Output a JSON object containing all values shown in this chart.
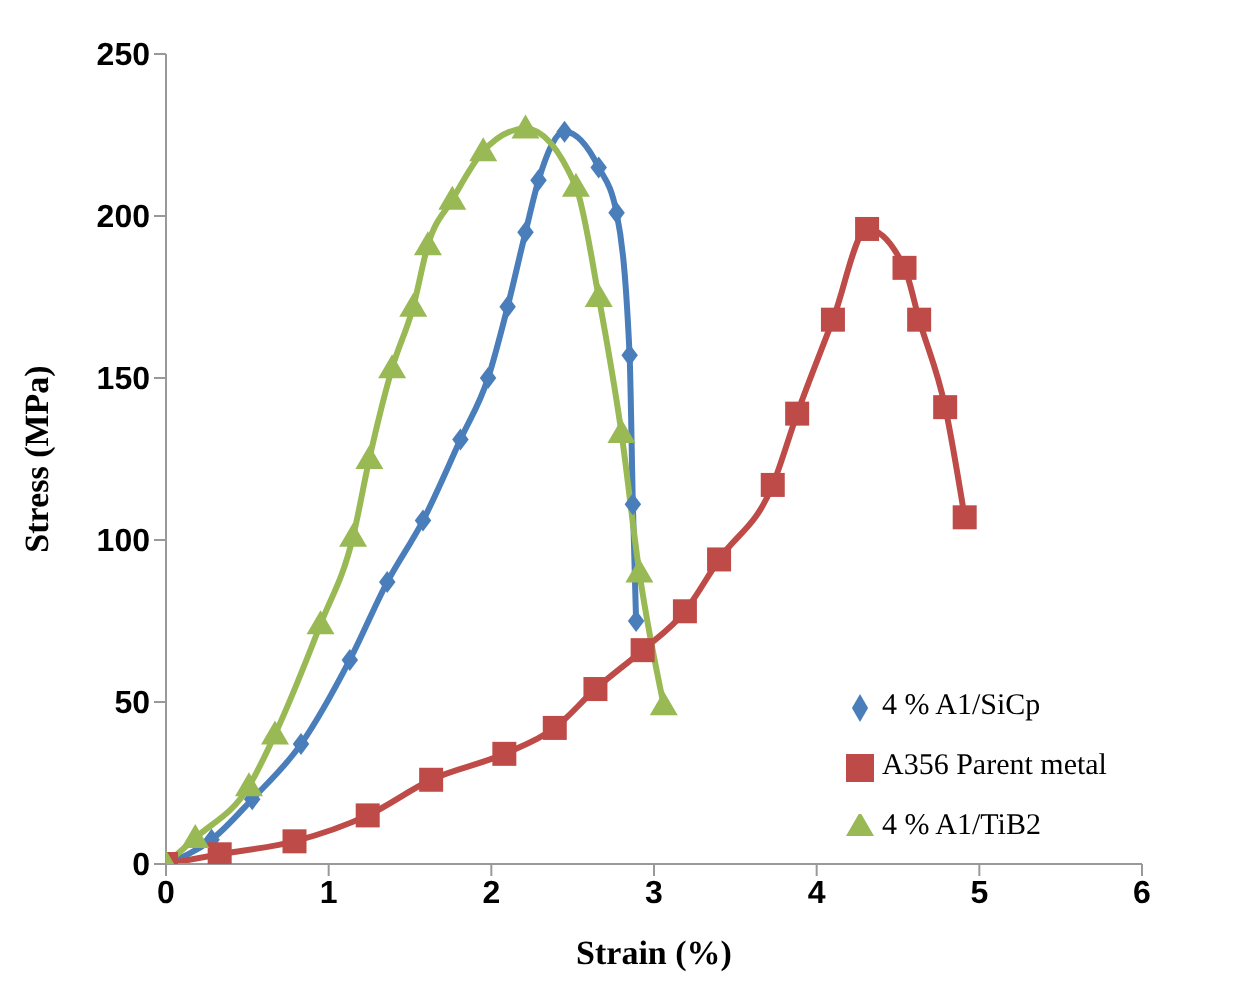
{
  "chart_data": {
    "type": "line",
    "xlabel": "Strain (%)",
    "ylabel": "Stress (MPa)",
    "xlim": [
      0,
      6
    ],
    "xticks": [
      0,
      1,
      2,
      3,
      4,
      5,
      6
    ],
    "ylim": [
      0,
      250
    ],
    "yticks": [
      0,
      50,
      100,
      150,
      200,
      250
    ],
    "grid": false,
    "legend": "right",
    "series": [
      {
        "name": "4 % A1/SiCp",
        "color": "#4a7ebb",
        "marker": "diamond",
        "x": [
          0,
          0.28,
          0.53,
          0.83,
          1.13,
          1.36,
          1.58,
          1.81,
          1.98,
          2.1,
          2.21,
          2.29,
          2.45,
          2.66,
          2.77,
          2.85,
          2.87,
          2.89
        ],
        "values": [
          0,
          7.5,
          20,
          37,
          63,
          87,
          106,
          131,
          150,
          172,
          195,
          211,
          226,
          215,
          201,
          157,
          111,
          75
        ]
      },
      {
        "name": "A356 Parent metal",
        "color": "#be4b48",
        "marker": "square",
        "x": [
          0,
          0.33,
          0.79,
          1.24,
          1.63,
          2.08,
          2.39,
          2.64,
          2.93,
          3.19,
          3.4,
          3.73,
          3.88,
          4.1,
          4.31,
          4.54,
          4.63,
          4.79,
          4.91
        ],
        "values": [
          0,
          3,
          7,
          15,
          26,
          34,
          42,
          54,
          66,
          78,
          94,
          117,
          139,
          168,
          196,
          184,
          168,
          141,
          107
        ]
      },
      {
        "name": "4 % A1/TiB2",
        "color": "#98b954",
        "marker": "triangle",
        "x": [
          0,
          0.18,
          0.51,
          0.67,
          0.95,
          1.15,
          1.25,
          1.39,
          1.52,
          1.61,
          1.76,
          1.95,
          2.21,
          2.52,
          2.66,
          2.8,
          2.91,
          3.06
        ],
        "values": [
          0,
          8,
          24,
          40,
          74,
          101,
          125,
          153,
          172,
          191,
          205,
          220,
          227,
          209,
          175,
          133,
          90,
          49
        ]
      }
    ]
  }
}
